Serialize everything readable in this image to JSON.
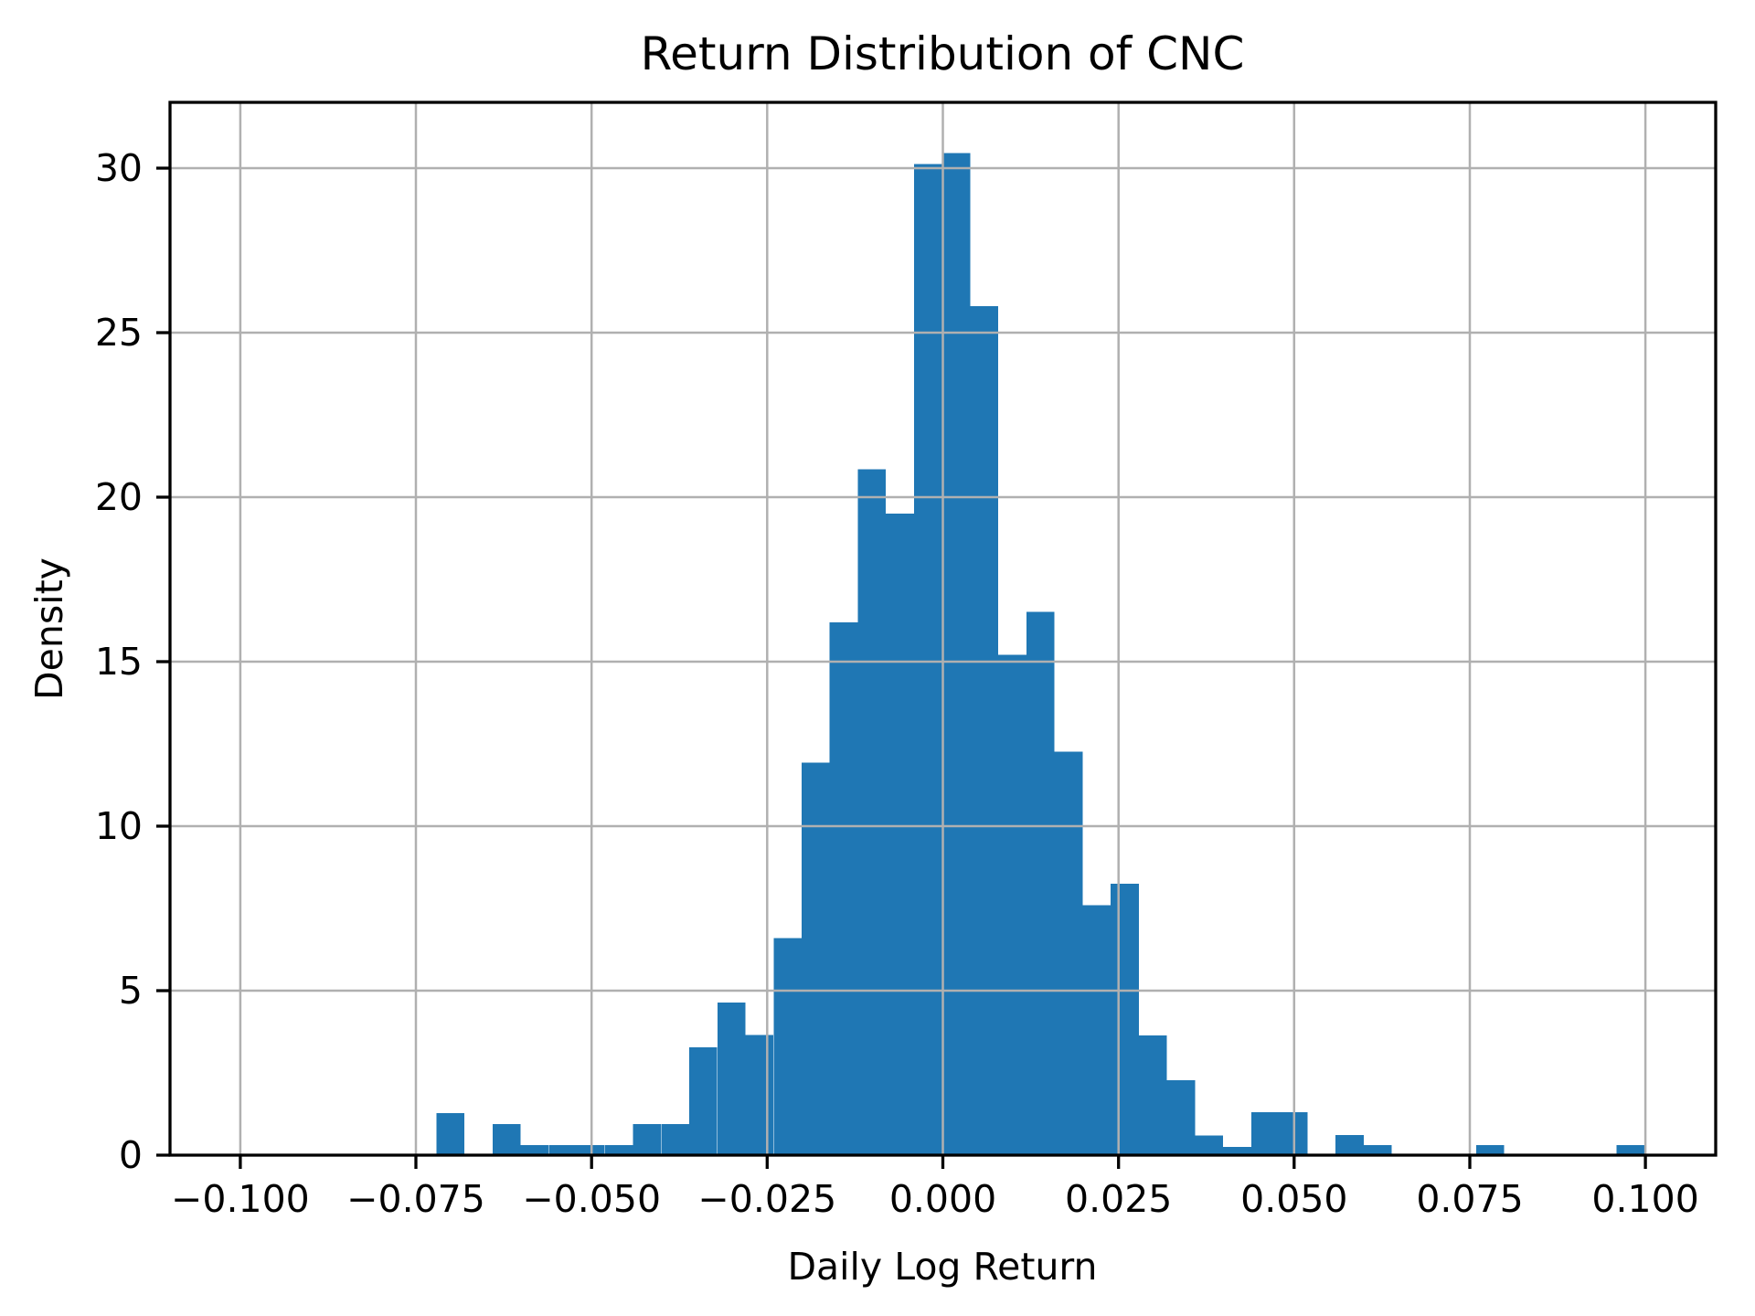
{
  "figure": {
    "title": "Return Distribution of CNC",
    "xlabel": "Daily Log Return",
    "ylabel": "Density"
  },
  "chart_data": {
    "type": "bar",
    "subtype": "histogram-density",
    "title": "Return Distribution of CNC",
    "xlabel": "Daily Log Return",
    "ylabel": "Density",
    "bin_start": -0.0721,
    "bin_width": 0.004,
    "densities": [
      1.28,
      0,
      0.94,
      0.31,
      0.31,
      0.31,
      0.31,
      0.94,
      0.94,
      3.28,
      4.64,
      3.65,
      6.6,
      11.93,
      16.2,
      20.85,
      19.5,
      30.12,
      30.46,
      25.8,
      15.21,
      16.52,
      12.27,
      7.6,
      8.25,
      3.64,
      2.28,
      0.6,
      0.25,
      1.3,
      1.3,
      0,
      0.61,
      0.31,
      0,
      0,
      0,
      0.31,
      0,
      0,
      0,
      0,
      0.31
    ],
    "xlim": [
      -0.11,
      0.11
    ],
    "ylim": [
      0,
      32
    ],
    "xticks": [
      -0.1,
      -0.075,
      -0.05,
      -0.025,
      0.0,
      0.025,
      0.05,
      0.075,
      0.1
    ],
    "xtick_labels": [
      "−0.100",
      "−0.075",
      "−0.050",
      "−0.025",
      "0.000",
      "0.025",
      "0.050",
      "0.075",
      "0.100"
    ],
    "yticks": [
      0,
      5,
      10,
      15,
      20,
      25,
      30
    ],
    "ytick_labels": [
      "0",
      "5",
      "10",
      "15",
      "20",
      "25",
      "30"
    ],
    "grid": true,
    "legend": null,
    "bar_color": "#1f77b4",
    "grid_color": "#b0b0b0",
    "axis_color": "#000000"
  }
}
